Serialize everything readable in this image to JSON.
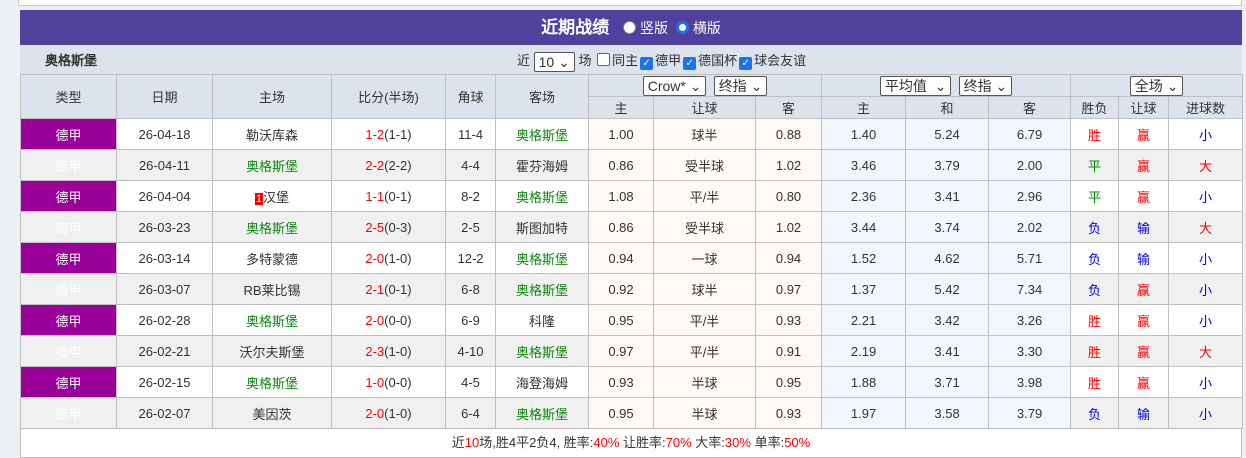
{
  "title": "近期战绩",
  "view_vertical": "竖版",
  "view_horizontal": "横版",
  "team": "奥格斯堡",
  "filter": {
    "prefix": "近",
    "count": "10",
    "suffix": "场",
    "same_home": "同主",
    "leagues": [
      "德甲",
      "德国杯",
      "球会友谊"
    ]
  },
  "selects": {
    "company": "Crow*",
    "odds_type": "终指",
    "avg": "平均值",
    "avg_type": "终指",
    "period": "全场"
  },
  "headers": {
    "type": "类型",
    "date": "日期",
    "home": "主场",
    "score": "比分(半场)",
    "corner": "角球",
    "away": "客场",
    "h_home": "主",
    "h_line": "让球",
    "h_away": "客",
    "e_home": "主",
    "e_draw": "和",
    "e_away": "客",
    "result": "胜负",
    "hcap": "让球",
    "goals": "进球数"
  },
  "rows": [
    {
      "league": "德甲",
      "date": "26-04-18",
      "home": "勒沃库森",
      "home_is_team": false,
      "score": "1-2",
      "half": "(1-1)",
      "corner": "11-4",
      "away": "奥格斯堡",
      "away_is_team": true,
      "ah": "1.00",
      "line": "球半",
      "aa": "0.88",
      "eh": "1.40",
      "ed": "5.24",
      "ea": "6.79",
      "res": "胜",
      "hc": "赢",
      "ou": "小"
    },
    {
      "league": "德甲",
      "date": "26-04-11",
      "home": "奥格斯堡",
      "home_is_team": true,
      "score": "2-2",
      "half": "(2-2)",
      "corner": "4-4",
      "away": "霍芬海姆",
      "away_is_team": false,
      "ah": "0.86",
      "line": "受半球",
      "aa": "1.02",
      "eh": "3.46",
      "ed": "3.79",
      "ea": "2.00",
      "res": "平",
      "hc": "赢",
      "ou": "大"
    },
    {
      "league": "德甲",
      "date": "26-04-04",
      "home": "汉堡",
      "home_card": "1",
      "home_is_team": false,
      "score": "1-1",
      "half": "(0-1)",
      "corner": "8-2",
      "away": "奥格斯堡",
      "away_is_team": true,
      "ah": "1.08",
      "line": "平/半",
      "aa": "0.80",
      "eh": "2.36",
      "ed": "3.41",
      "ea": "2.96",
      "res": "平",
      "hc": "赢",
      "ou": "小"
    },
    {
      "league": "德甲",
      "date": "26-03-23",
      "home": "奥格斯堡",
      "home_is_team": true,
      "score": "2-5",
      "half": "(0-3)",
      "corner": "2-5",
      "away": "斯图加特",
      "away_is_team": false,
      "ah": "0.86",
      "line": "受半球",
      "aa": "1.02",
      "eh": "3.44",
      "ed": "3.74",
      "ea": "2.02",
      "res": "负",
      "hc": "输",
      "ou": "大"
    },
    {
      "league": "德甲",
      "date": "26-03-14",
      "home": "多特蒙德",
      "home_is_team": false,
      "score": "2-0",
      "half": "(1-0)",
      "corner": "12-2",
      "away": "奥格斯堡",
      "away_is_team": true,
      "ah": "0.94",
      "line": "一球",
      "aa": "0.94",
      "eh": "1.52",
      "ed": "4.62",
      "ea": "5.71",
      "res": "负",
      "hc": "输",
      "ou": "小"
    },
    {
      "league": "德甲",
      "date": "26-03-07",
      "home": "RB莱比锡",
      "home_is_team": false,
      "score": "2-1",
      "half": "(0-1)",
      "corner": "6-8",
      "away": "奥格斯堡",
      "away_is_team": true,
      "ah": "0.92",
      "line": "球半",
      "aa": "0.97",
      "eh": "1.37",
      "ed": "5.42",
      "ea": "7.34",
      "res": "负",
      "hc": "赢",
      "ou": "小"
    },
    {
      "league": "德甲",
      "date": "26-02-28",
      "home": "奥格斯堡",
      "home_is_team": true,
      "score": "2-0",
      "half": "(0-0)",
      "corner": "6-9",
      "away": "科隆",
      "away_is_team": false,
      "ah": "0.95",
      "line": "平/半",
      "aa": "0.93",
      "eh": "2.21",
      "ed": "3.42",
      "ea": "3.26",
      "res": "胜",
      "hc": "赢",
      "ou": "小"
    },
    {
      "league": "德甲",
      "date": "26-02-21",
      "home": "沃尔夫斯堡",
      "home_is_team": false,
      "score": "2-3",
      "half": "(1-0)",
      "corner": "4-10",
      "away": "奥格斯堡",
      "away_is_team": true,
      "ah": "0.97",
      "line": "平/半",
      "aa": "0.91",
      "eh": "2.19",
      "ed": "3.41",
      "ea": "3.30",
      "res": "胜",
      "hc": "赢",
      "ou": "大"
    },
    {
      "league": "德甲",
      "date": "26-02-15",
      "home": "奥格斯堡",
      "home_is_team": true,
      "score": "1-0",
      "half": "(0-0)",
      "corner": "4-5",
      "away": "海登海姆",
      "away_is_team": false,
      "ah": "0.93",
      "line": "半球",
      "aa": "0.95",
      "eh": "1.88",
      "ed": "3.71",
      "ea": "3.98",
      "res": "胜",
      "hc": "赢",
      "ou": "小"
    },
    {
      "league": "德甲",
      "date": "26-02-07",
      "home": "美因茨",
      "home_is_team": false,
      "score": "2-0",
      "half": "(1-0)",
      "corner": "6-4",
      "away": "奥格斯堡",
      "away_is_team": true,
      "ah": "0.95",
      "line": "半球",
      "aa": "0.93",
      "eh": "1.97",
      "ed": "3.58",
      "ea": "3.79",
      "res": "负",
      "hc": "输",
      "ou": "小"
    }
  ],
  "summary": {
    "p1": "近",
    "n": "10",
    "p2": "场,胜4平2负4, 胜率:",
    "win": "40%",
    "p3": " 让胜率:",
    "hwin": "70%",
    "p4": " 大率:",
    "big": "30%",
    "p5": " 单率:",
    "odd": "50%"
  },
  "colors": {
    "title_bg": "#51409c",
    "league_bg": "#990099",
    "team_green": "#118811",
    "red": "#ff0000",
    "blue": "#0000ee"
  }
}
